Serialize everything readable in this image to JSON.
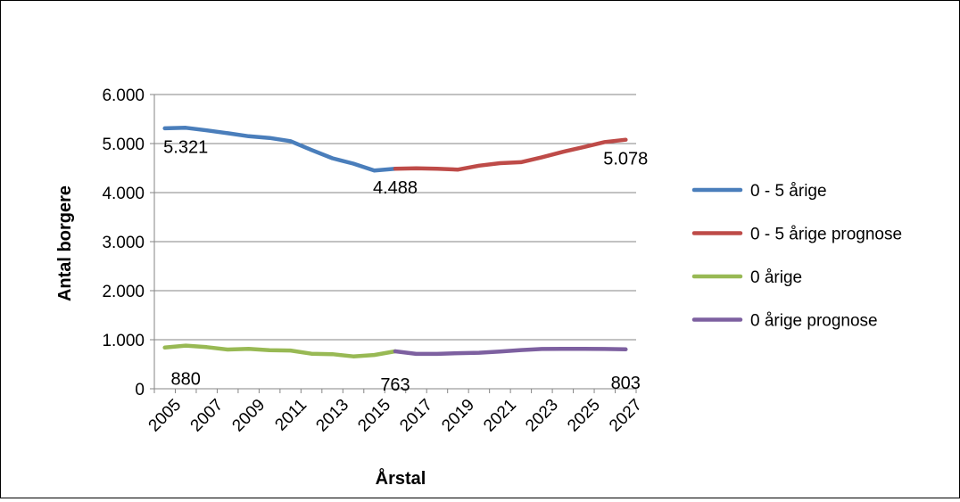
{
  "chart_data": {
    "type": "line",
    "title": "",
    "xlabel": "Årstal",
    "ylabel": "Antal borgere",
    "ylim": [
      0,
      6000
    ],
    "yticks": [
      0,
      1000,
      2000,
      3000,
      4000,
      5000,
      6000
    ],
    "ytick_labels": [
      "0",
      "1.000",
      "2.000",
      "3.000",
      "4.000",
      "5.000",
      "6.000"
    ],
    "x_range": [
      2005,
      2027
    ],
    "xtick_labels": [
      "2005",
      "2007",
      "2009",
      "2011",
      "2013",
      "2015",
      "2017",
      "2019",
      "2021",
      "2023",
      "2025",
      "2027"
    ],
    "grid": "horizontal",
    "legend_position": "right",
    "series": [
      {
        "name": "0 - 5 årige",
        "color": "#4A7EBB",
        "x": [
          2005,
          2006,
          2007,
          2008,
          2009,
          2010,
          2011,
          2012,
          2013,
          2014,
          2015,
          2016
        ],
        "values": [
          5310,
          5321,
          5270,
          5210,
          5150,
          5115,
          5050,
          4870,
          4700,
          4590,
          4450,
          4488
        ]
      },
      {
        "name": "0 - 5 årige prognose",
        "color": "#BE4B48",
        "x": [
          2016,
          2017,
          2018,
          2019,
          2020,
          2021,
          2022,
          2023,
          2024,
          2025,
          2026,
          2027
        ],
        "values": [
          4488,
          4495,
          4485,
          4470,
          4550,
          4600,
          4620,
          4720,
          4830,
          4930,
          5030,
          5078
        ]
      },
      {
        "name": "0 årige",
        "color": "#98B954",
        "x": [
          2005,
          2006,
          2007,
          2008,
          2009,
          2010,
          2011,
          2012,
          2013,
          2014,
          2015,
          2016
        ],
        "values": [
          840,
          880,
          850,
          800,
          815,
          785,
          780,
          715,
          705,
          660,
          690,
          763
        ]
      },
      {
        "name": "0 årige prognose",
        "color": "#7D60A0",
        "x": [
          2016,
          2017,
          2018,
          2019,
          2020,
          2021,
          2022,
          2023,
          2024,
          2025,
          2026,
          2027
        ],
        "values": [
          763,
          710,
          710,
          725,
          735,
          760,
          790,
          810,
          815,
          815,
          810,
          803
        ]
      }
    ],
    "annotations": [
      {
        "text": "5.321",
        "x": 2006,
        "y": 5321,
        "anchor": "below"
      },
      {
        "text": "4.488",
        "x": 2016,
        "y": 4488,
        "anchor": "below"
      },
      {
        "text": "5.078",
        "x": 2027,
        "y": 5078,
        "anchor": "below"
      },
      {
        "text": "880",
        "x": 2006,
        "y": 880,
        "anchor": "below-far"
      },
      {
        "text": "763",
        "x": 2016,
        "y": 763,
        "anchor": "below-far"
      },
      {
        "text": "803",
        "x": 2027,
        "y": 803,
        "anchor": "below-far"
      }
    ]
  }
}
